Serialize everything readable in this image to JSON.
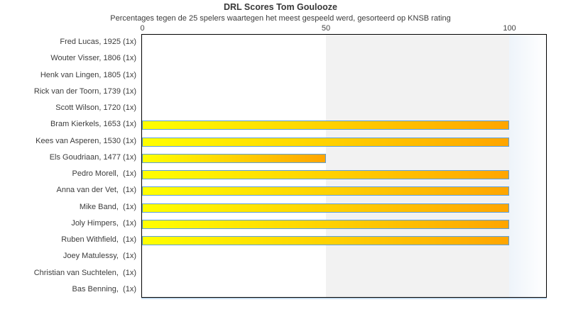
{
  "chart_data": {
    "type": "bar",
    "orientation": "horizontal",
    "title": "DRL Scores Tom Goulooze",
    "subtitle": "Percentages tegen de 25 spelers waartegen het meest gespeeld werd, gesorteerd op KNSB rating",
    "categories": [
      "Fred Lucas, 1925 (1x)",
      "Wouter Visser, 1806 (1x)",
      "Henk van Lingen, 1805 (1x)",
      "Rick van der Toorn, 1739 (1x)",
      "Scott Wilson, 1720 (1x)",
      "Bram Kierkels, 1653 (1x)",
      "Kees van Asperen, 1530 (1x)",
      "Els Goudriaan, 1477 (1x)",
      "Pedro Morell,  (1x)",
      "Anna van der Vet,  (1x)",
      "Mike Band,  (1x)",
      "Joly Himpers,  (1x)",
      "Ruben Withfield,  (1x)",
      "Joey Matulessy,  (1x)",
      "Christian van Suchtelen,  (1x)",
      "Bas Benning,  (1x)"
    ],
    "values": [
      0,
      0,
      0,
      0,
      0,
      100,
      100,
      50,
      100,
      100,
      100,
      100,
      100,
      0,
      0,
      0
    ],
    "xlabel": "",
    "ylabel": "",
    "xticks": [
      0,
      50,
      100
    ],
    "xlim": [
      0,
      110
    ],
    "grid": false,
    "legend": false,
    "ticks_position": "top",
    "background_bands": [
      {
        "from": 0,
        "to": 50,
        "color": "#ffffff"
      },
      {
        "from": 50,
        "to": 100,
        "color": "#f2f2f2"
      },
      {
        "from": 100,
        "to": 110,
        "color": "gradient #eef4fa to #ffffff"
      }
    ],
    "colors": {
      "bar_gradient_start": "#ffff00",
      "bar_gradient_end": "#ffa500",
      "bar_border": "#5da0dd",
      "band_mid": "#f2f2f2",
      "band_right_start": "#eef4fa",
      "plot_border": "#000000",
      "baseline_accent": "#c3daed",
      "text": "#3c3c3c"
    }
  }
}
